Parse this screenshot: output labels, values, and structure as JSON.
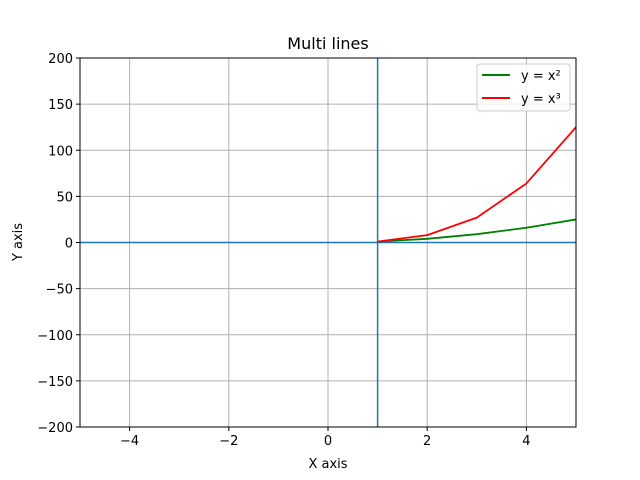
{
  "chart_data": {
    "type": "line",
    "title": "Multi lines",
    "xlabel": "X axis",
    "ylabel": "Y axis",
    "xlim": [
      -5,
      5
    ],
    "ylim": [
      -200,
      200
    ],
    "xticks": [
      -4,
      -2,
      0,
      2,
      4
    ],
    "xtick_labels": [
      "−4",
      "−2",
      "0",
      "2",
      "4"
    ],
    "yticks": [
      -200,
      -150,
      -100,
      -50,
      0,
      50,
      100,
      150,
      200
    ],
    "ytick_labels": [
      "−200",
      "−150",
      "−100",
      "−50",
      "0",
      "50",
      "100",
      "150",
      "200"
    ],
    "grid": true,
    "legend_position": "top-right",
    "series": [
      {
        "name": "y = x²",
        "color": "#008000",
        "x": [
          1,
          2,
          3,
          4,
          5
        ],
        "y": [
          1,
          4,
          9,
          16,
          25
        ]
      },
      {
        "name": "y = x³",
        "color": "#ff0000",
        "x": [
          1,
          2,
          3,
          4,
          5
        ],
        "y": [
          1,
          8,
          27,
          64,
          125
        ]
      }
    ],
    "reference_lines": [
      {
        "orientation": "horizontal",
        "value": 0,
        "color": "#1f77b4"
      },
      {
        "orientation": "vertical",
        "value": 1,
        "color": "#1f77b4"
      }
    ]
  }
}
